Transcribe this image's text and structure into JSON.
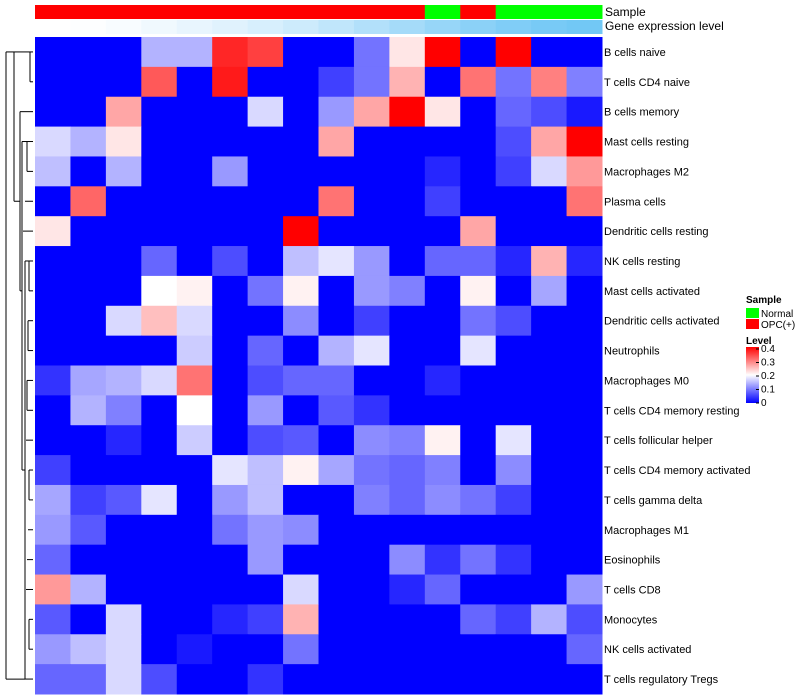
{
  "chart_data": {
    "type": "heatmap",
    "annotations": {
      "sample_label": "Sample",
      "gene_label": "Gene expression level",
      "sample_colors": [
        "#FF0000",
        "#FF0000",
        "#FF0000",
        "#FF0000",
        "#FF0000",
        "#FF0000",
        "#FF0000",
        "#FF0000",
        "#FF0000",
        "#FF0000",
        "#FF0000",
        "#00FF00",
        "#FF0000",
        "#00FF00",
        "#00FF00",
        "#00FF00"
      ],
      "gene_colors": [
        "#FFFFFF",
        "#FDFEFF",
        "#F8FCFF",
        "#F0F9FE",
        "#E8F5FE",
        "#E0F2FD",
        "#D7EFFD",
        "#CDEBFC",
        "#C0E6FB",
        "#B2E0FA",
        "#A5DBF9",
        "#97D6F8",
        "#8BD1F7",
        "#80CDF7",
        "#78CAF6",
        "#72C8F5"
      ]
    },
    "rows": [
      "B cells naive",
      "T cells CD4 naive",
      "B cells memory",
      "Mast cells resting",
      "Macrophages M2",
      "Plasma cells",
      "Dendritic cells resting",
      "NK cells resting",
      "Mast cells activated",
      "Dendritic cells activated",
      "Neutrophils",
      "Macrophages M0",
      "T cells CD4 memory resting",
      "T cells follicular helper",
      "T cells CD4 memory activated",
      "T cells gamma delta",
      "Macrophages M1",
      "Eosinophils",
      "T cells CD8",
      "Monocytes",
      "NK cells activated",
      "T cells regulatory  Tregs"
    ],
    "values": [
      [
        0,
        0,
        0,
        0.14,
        0.14,
        0.37,
        0.35,
        0,
        0,
        0.09,
        0.22,
        0.4,
        0,
        0.4,
        0,
        0
      ],
      [
        0,
        0,
        0,
        0.33,
        0,
        0.38,
        0,
        0,
        0.05,
        0.09,
        0.26,
        0,
        0.31,
        0.09,
        0.3,
        0.1
      ],
      [
        0,
        0,
        0.27,
        0,
        0,
        0,
        0.17,
        0,
        0.12,
        0.27,
        0.4,
        0.22,
        0,
        0.08,
        0.06,
        0.02
      ],
      [
        0.17,
        0.14,
        0.22,
        0,
        0,
        0,
        0,
        0,
        0.27,
        0,
        0,
        0,
        0,
        0.06,
        0.27,
        0.4
      ],
      [
        0.15,
        0,
        0.14,
        0,
        0,
        0.12,
        0,
        0,
        0,
        0,
        0,
        0.03,
        0,
        0.05,
        0.17,
        0.28
      ],
      [
        0,
        0.32,
        0,
        0,
        0,
        0,
        0,
        0,
        0.31,
        0,
        0,
        0.05,
        0,
        0,
        0,
        0.31
      ],
      [
        0.22,
        0,
        0,
        0,
        0,
        0,
        0,
        0.4,
        0,
        0,
        0,
        0,
        0.27,
        0,
        0,
        0
      ],
      [
        0,
        0,
        0,
        0.08,
        0,
        0.06,
        0,
        0.15,
        0.18,
        0.12,
        0,
        0.08,
        0.08,
        0.03,
        0.26,
        0.03
      ],
      [
        0,
        0,
        0,
        0.2,
        0.21,
        0,
        0.09,
        0.21,
        0,
        0.12,
        0.1,
        0,
        0.21,
        0,
        0.13,
        0
      ],
      [
        0,
        0,
        0.17,
        0.25,
        0.17,
        0,
        0,
        0.11,
        0,
        0.05,
        0,
        0,
        0.09,
        0.06,
        0,
        0
      ],
      [
        0,
        0,
        0,
        0,
        0.16,
        0,
        0.08,
        0,
        0.14,
        0.18,
        0,
        0,
        0.18,
        0,
        0,
        0
      ],
      [
        0.04,
        0.13,
        0.14,
        0.17,
        0.31,
        0,
        0.06,
        0.08,
        0.08,
        0,
        0,
        0.03,
        0,
        0,
        0,
        0
      ],
      [
        0,
        0.14,
        0.1,
        0,
        0.2,
        0,
        0.12,
        0,
        0.07,
        0.04,
        0,
        0,
        0,
        0,
        0,
        0
      ],
      [
        0,
        0,
        0.03,
        0,
        0.16,
        0,
        0.06,
        0.07,
        0,
        0.11,
        0.1,
        0.21,
        0,
        0.18,
        0,
        0
      ],
      [
        0.05,
        0,
        0,
        0,
        0,
        0.18,
        0.15,
        0.21,
        0.13,
        0.09,
        0.08,
        0.1,
        0,
        0.11,
        0,
        0
      ],
      [
        0.13,
        0.05,
        0.07,
        0.18,
        0,
        0.12,
        0.15,
        0,
        0,
        0.1,
        0.08,
        0.11,
        0.09,
        0.05,
        0,
        0
      ],
      [
        0.12,
        0.07,
        0,
        0,
        0,
        0.09,
        0.12,
        0.11,
        0,
        0,
        0,
        0,
        0,
        0,
        0,
        0
      ],
      [
        0.08,
        0,
        0,
        0,
        0,
        0,
        0.12,
        0,
        0,
        0,
        0.11,
        0.04,
        0.09,
        0.04,
        0,
        0
      ],
      [
        0.28,
        0.14,
        0,
        0,
        0,
        0,
        0,
        0.17,
        0,
        0,
        0.03,
        0.08,
        0,
        0,
        0,
        0.12
      ],
      [
        0.07,
        0,
        0.17,
        0,
        0,
        0.03,
        0.05,
        0.26,
        0,
        0,
        0,
        0,
        0.08,
        0.05,
        0.14,
        0.06
      ],
      [
        0.12,
        0.15,
        0.17,
        0,
        0.02,
        0,
        0,
        0.09,
        0,
        0,
        0,
        0,
        0,
        0,
        0,
        0.08
      ],
      [
        0.08,
        0.08,
        0.17,
        0.06,
        0,
        0,
        0.04,
        0,
        0,
        0,
        0,
        0,
        0,
        0,
        0,
        0
      ]
    ],
    "color_scale": {
      "min": 0,
      "max": 0.4,
      "low": "#0000FF",
      "mid": "#FFFFFF",
      "high": "#FF0000",
      "mid_value": 0.2
    },
    "legend": {
      "sample_title": "Sample",
      "sample_items": [
        {
          "label": "Normal",
          "color": "#00FF00"
        },
        {
          "label": "OPC(+)",
          "color": "#FF0000"
        }
      ],
      "level_title": "Level",
      "level_ticks": [
        "0.4",
        "0.3",
        "0.2",
        "0.1",
        "0"
      ],
      "placement": "right"
    }
  }
}
